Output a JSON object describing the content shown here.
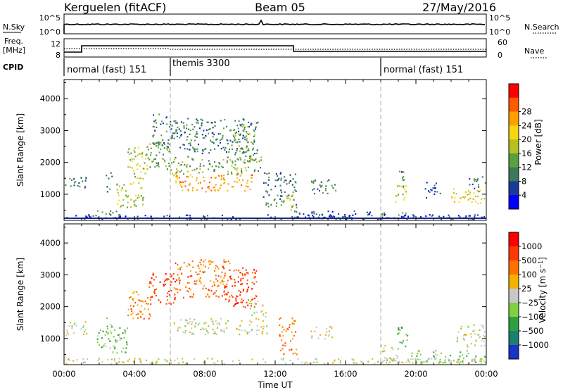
{
  "header": {
    "radar": "Kerguelen (fitACF)",
    "beam": "Beam 05",
    "date": "27/May/2016"
  },
  "scan_panels": {
    "nsky_label": "N.Sky",
    "nsky_ticks": [
      "10^5",
      "10^0"
    ],
    "nsearch_label": "N.Search",
    "freq_label_line1": "Freq.",
    "freq_label_line2": "[MHz]",
    "freq_ticks": [
      "12",
      "8"
    ],
    "nave_ticks": [
      "60",
      "0"
    ],
    "nave_label": "Nave",
    "cpid_label": "CPID",
    "cpid_segments": [
      {
        "label": "normal (fast) 151",
        "start_hour": 0,
        "end_hour": 6
      },
      {
        "label": "themis 3300",
        "start_hour": 6,
        "end_hour": 18
      },
      {
        "label": "normal (fast) 151",
        "start_hour": 18,
        "end_hour": 24
      }
    ]
  },
  "chart_data": [
    {
      "type": "heatmap",
      "name": "Power",
      "xlabel": "Time UT",
      "ylabel": "Slant Range [km]",
      "xlim": [
        0,
        24
      ],
      "ylim": [
        180,
        4600
      ],
      "x_tick_labels": [
        "00:00",
        "04:00",
        "08:00",
        "12:00",
        "16:00",
        "20:00",
        "00:00"
      ],
      "y_ticks": [
        1000,
        2000,
        3000,
        4000
      ],
      "colorbar": {
        "label": "Power [dB]",
        "ticks": [
          "4",
          "8",
          "12",
          "16",
          "20",
          "24",
          "28"
        ],
        "colors": [
          "#0000ff",
          "#1a3a9a",
          "#3b7a5a",
          "#5aa040",
          "#b8c020",
          "#f5d810",
          "#ffa000",
          "#ff5a00",
          "#ff0000"
        ]
      },
      "regions": [
        {
          "t0": 0.0,
          "t1": 1.3,
          "r0": 1150,
          "r1": 1550,
          "level": 2
        },
        {
          "t0": 1.8,
          "t1": 3.5,
          "r0": 250,
          "r1": 500,
          "level": 2
        },
        {
          "t0": 2.3,
          "t1": 2.7,
          "r0": 1100,
          "r1": 1700,
          "level": 2
        },
        {
          "t0": 2.9,
          "t1": 4.5,
          "r0": 600,
          "r1": 1400,
          "level": 4
        },
        {
          "t0": 3.6,
          "t1": 4.8,
          "r0": 1500,
          "r1": 2500,
          "level": 4
        },
        {
          "t0": 4.5,
          "t1": 6.0,
          "r0": 1800,
          "r1": 2700,
          "level": 3
        },
        {
          "t0": 5.0,
          "t1": 6.2,
          "r0": 2500,
          "r1": 3600,
          "level": 2
        },
        {
          "t0": 6.2,
          "t1": 10.8,
          "r0": 1100,
          "r1": 1650,
          "level": 6
        },
        {
          "t0": 6.0,
          "t1": 11.2,
          "r0": 1650,
          "r1": 2200,
          "level": 3
        },
        {
          "t0": 6.2,
          "t1": 11.0,
          "r0": 2300,
          "r1": 3400,
          "level": 2
        },
        {
          "t0": 9.5,
          "t1": 10.8,
          "r0": 2000,
          "r1": 3200,
          "level": 3
        },
        {
          "t0": 11.3,
          "t1": 13.2,
          "r0": 600,
          "r1": 1700,
          "level": 2
        },
        {
          "t0": 12.3,
          "t1": 13.0,
          "r0": 500,
          "r1": 1000,
          "level": 4
        },
        {
          "t0": 14.0,
          "t1": 15.5,
          "r0": 1000,
          "r1": 1500,
          "level": 2
        },
        {
          "t0": 13.0,
          "t1": 17.5,
          "r0": 180,
          "r1": 500,
          "level": 1
        },
        {
          "t0": 18.0,
          "t1": 19.5,
          "r0": 250,
          "r1": 450,
          "level": 2
        },
        {
          "t0": 18.8,
          "t1": 19.6,
          "r0": 700,
          "r1": 1300,
          "level": 4
        },
        {
          "t0": 19.0,
          "t1": 19.3,
          "r0": 1400,
          "r1": 1900,
          "level": 2
        },
        {
          "t0": 20.5,
          "t1": 21.4,
          "r0": 900,
          "r1": 1400,
          "level": 1
        },
        {
          "t0": 22.0,
          "t1": 24.0,
          "r0": 700,
          "r1": 1200,
          "level": 5
        },
        {
          "t0": 23.0,
          "t1": 24.0,
          "r0": 1100,
          "r1": 1600,
          "level": 2
        },
        {
          "t0": 0.0,
          "t1": 24.0,
          "r0": 180,
          "r1": 380,
          "level": 1
        }
      ]
    },
    {
      "type": "heatmap",
      "name": "Velocity",
      "xlabel": "Time UT",
      "ylabel": "Slant Range [km]",
      "xlim": [
        0,
        24
      ],
      "ylim": [
        180,
        4600
      ],
      "x_tick_labels": [
        "00:00",
        "04:00",
        "08:00",
        "12:00",
        "16:00",
        "20:00",
        "00:00"
      ],
      "y_ticks": [
        1000,
        2000,
        3000,
        4000
      ],
      "colorbar": {
        "label": "Velocity [m s^-1]",
        "ticks": [
          "1000",
          "500",
          "100",
          "25",
          "−25",
          "−100",
          "−500",
          "−1000"
        ],
        "colors": [
          "#1a32c8",
          "#1c8070",
          "#2ea040",
          "#80d040",
          "#c8c8c8",
          "#f5b000",
          "#ff7000",
          "#ff3a00",
          "#ff0000"
        ]
      },
      "regions": [
        {
          "t0": 0.0,
          "t1": 1.3,
          "r0": 1100,
          "r1": 1550,
          "level": 4
        },
        {
          "t0": 1.8,
          "t1": 3.6,
          "r0": 550,
          "r1": 1400,
          "level": 3
        },
        {
          "t0": 2.4,
          "t1": 2.7,
          "r0": 900,
          "r1": 1700,
          "level": 3
        },
        {
          "t0": 3.6,
          "t1": 5.0,
          "r0": 1600,
          "r1": 2500,
          "level": 6
        },
        {
          "t0": 4.8,
          "t1": 6.3,
          "r0": 2100,
          "r1": 3100,
          "level": 7
        },
        {
          "t0": 6.2,
          "t1": 11.5,
          "r0": 1150,
          "r1": 1650,
          "level": 4
        },
        {
          "t0": 6.2,
          "t1": 9.5,
          "r0": 2300,
          "r1": 3500,
          "level": 6
        },
        {
          "t0": 9.0,
          "t1": 10.9,
          "r0": 2000,
          "r1": 3300,
          "level": 7
        },
        {
          "t0": 10.5,
          "t1": 11.5,
          "r0": 1700,
          "r1": 2200,
          "level": 4
        },
        {
          "t0": 12.2,
          "t1": 13.2,
          "r0": 500,
          "r1": 1700,
          "level": 6
        },
        {
          "t0": 14.0,
          "t1": 15.3,
          "r0": 1000,
          "r1": 1400,
          "level": 4
        },
        {
          "t0": 17.8,
          "t1": 19.0,
          "r0": 250,
          "r1": 800,
          "level": 4
        },
        {
          "t0": 18.9,
          "t1": 19.5,
          "r0": 700,
          "r1": 1400,
          "level": 2
        },
        {
          "t0": 19.5,
          "t1": 24.0,
          "r0": 250,
          "r1": 650,
          "level": 3
        },
        {
          "t0": 22.3,
          "t1": 24.0,
          "r0": 750,
          "r1": 1450,
          "level": 4
        },
        {
          "t0": 0.0,
          "t1": 24.0,
          "r0": 180,
          "r1": 400,
          "level": 4
        }
      ]
    }
  ]
}
